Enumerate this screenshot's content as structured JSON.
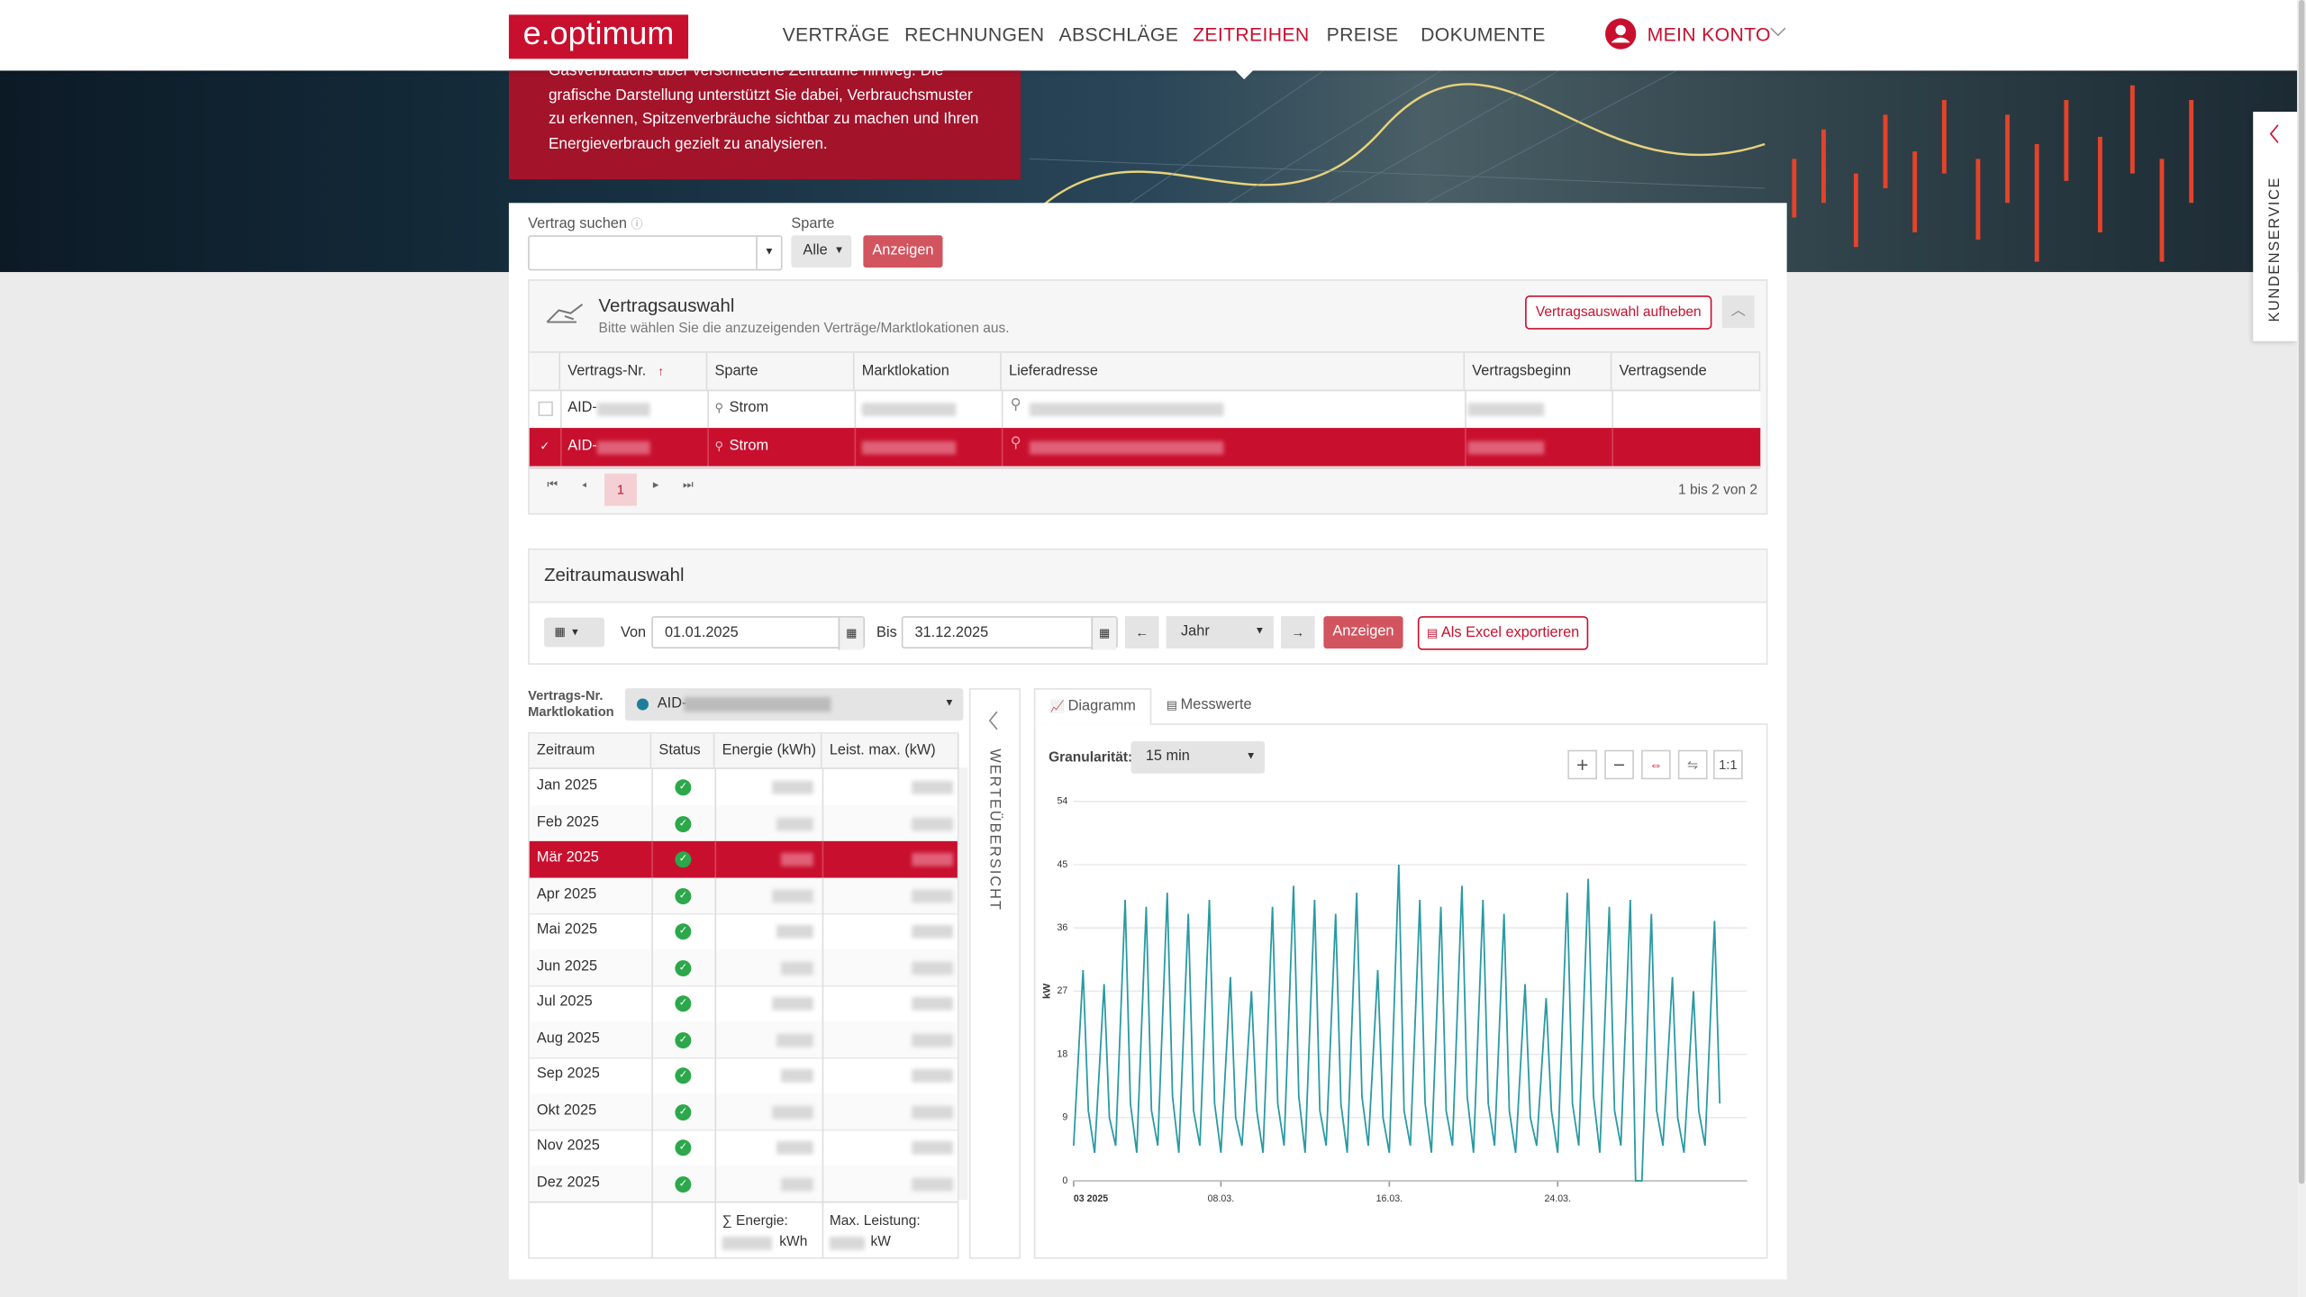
{
  "header": {
    "logo": "e.optimum",
    "nav": [
      "VERTRÄGE",
      "RECHNUNGEN",
      "ABSCHLÄGE",
      "ZEITREIHEN",
      "PREISE",
      "DOKUMENTE"
    ],
    "active_nav": 3,
    "account": "MEIN KONTO"
  },
  "hero": {
    "lines": [
      "Gasverbrauchs über verschiedene Zeiträume hinweg. Die",
      "grafische Darstellung unterstützt Sie dabei, Verbrauchsmuster",
      "zu erkennen, Spitzenverbräuche sichtbar zu machen und Ihren",
      "Energieverbrauch gezielt zu analysieren."
    ]
  },
  "side_tab": "KUNDENSERVICE",
  "search": {
    "contract_label": "Vertrag suchen",
    "sparte_label": "Sparte",
    "sparte_value": "Alle",
    "button": "Anzeigen"
  },
  "contract_selection": {
    "title": "Vertragsauswahl",
    "subtitle": "Bitte wählen Sie die anzuzeigenden Verträge/Marktlokationen aus.",
    "clear_button": "Vertragsauswahl aufheben",
    "columns": [
      "Vertrags-Nr.",
      "Sparte",
      "Marktlokation",
      "Lieferadresse",
      "Vertragsbeginn",
      "Vertragsende"
    ],
    "rows": [
      [
        "AID-",
        "Strom"
      ],
      [
        "AID-",
        "Strom"
      ]
    ],
    "selected": 1,
    "page": "1",
    "pager_info": "1 bis 2 von 2"
  },
  "period": {
    "title": "Zeitraumauswahl",
    "from_label": "Von",
    "from": "01.01.2025",
    "to_label": "Bis",
    "to": "31.12.2025",
    "step": "Jahr",
    "show_button": "Anzeigen",
    "export_button": "Als Excel exportieren"
  },
  "overview": {
    "select_label": [
      "Vertrags-Nr.",
      "Marktlokation"
    ],
    "select_value": "AID-",
    "columns": [
      "Zeitraum",
      "Status",
      "Energie (kWh)",
      "Leist. max. (kW)"
    ],
    "months": [
      "Jan 2025",
      "Feb 2025",
      "Mär 2025",
      "Apr 2025",
      "Mai 2025",
      "Jun 2025",
      "Jul 2025",
      "Aug 2025",
      "Sep 2025",
      "Okt 2025",
      "Nov 2025",
      "Dez 2025"
    ],
    "selected": 2,
    "footer": {
      "energy_label": "∑ Energie:",
      "energy_unit": "kWh",
      "power_label": "Max. Leistung:",
      "power_unit": "kW"
    },
    "side_label": "WERTEÜBERSICHT"
  },
  "tabs": [
    "Diagramm",
    "Messwerte"
  ],
  "granularity": {
    "label": "Granularität:",
    "value": "15 min"
  },
  "zoom_reset": "1:1",
  "chart_data": {
    "type": "line",
    "y_label": "kW",
    "x": [
      1,
      1.45,
      1.7,
      2,
      2.45,
      2.7,
      3,
      3.45,
      3.7,
      4,
      4.45,
      4.7,
      5,
      5.45,
      5.7,
      6,
      6.45,
      6.7,
      7,
      7.45,
      7.7,
      8,
      8.45,
      8.7,
      9,
      9.45,
      9.7,
      10,
      10.45,
      10.7,
      11,
      11.45,
      11.7,
      12,
      12.45,
      12.7,
      13,
      13.45,
      13.7,
      14,
      14.45,
      14.7,
      15,
      15.45,
      15.7,
      16,
      16.45,
      16.7,
      17,
      17.45,
      17.7,
      18,
      18.45,
      18.7,
      19,
      19.45,
      19.7,
      20,
      20.45,
      20.7,
      21,
      21.45,
      21.7,
      22,
      22.45,
      22.7,
      23,
      23.45,
      23.7,
      24,
      24.45,
      24.7,
      25,
      25.45,
      25.7,
      26,
      26.45,
      26.7,
      27,
      27.45,
      27.7,
      28,
      28.45,
      28.7,
      29,
      29.45,
      29.7,
      30,
      30.45,
      30.7,
      31,
      31.45,
      31.7
    ],
    "series": [
      {
        "color": "#2a9aa3",
        "values": [
          5,
          30,
          10,
          4,
          28,
          9,
          5,
          40,
          11,
          4,
          39,
          10,
          5,
          41,
          12,
          4,
          38,
          10,
          5,
          40,
          11,
          4,
          29,
          9,
          5,
          27,
          10,
          4,
          39,
          11,
          5,
          42,
          12,
          4,
          40,
          10,
          5,
          38,
          11,
          4,
          41,
          12,
          5,
          30,
          9,
          4,
          45,
          10,
          5,
          40,
          11,
          4,
          39,
          10,
          5,
          42,
          12,
          4,
          40,
          11,
          5,
          38,
          10,
          4,
          28,
          9,
          5,
          26,
          10,
          4,
          41,
          11,
          5,
          43,
          12,
          4,
          39,
          10,
          5,
          40,
          0,
          0,
          38,
          10,
          5,
          29,
          9,
          4,
          27,
          10,
          5,
          37,
          11
        ]
      }
    ],
    "xlim": [
      1,
      33
    ],
    "ylim": [
      0,
      54
    ],
    "yticks": [
      0,
      9,
      18,
      27,
      36,
      45,
      54
    ],
    "xticks": [
      {
        "value": 1,
        "label": "03 2025"
      },
      {
        "value": 8,
        "label": "08.03."
      },
      {
        "value": 16,
        "label": "16.03."
      },
      {
        "value": 24,
        "label": "24.03."
      }
    ],
    "grid": true
  }
}
